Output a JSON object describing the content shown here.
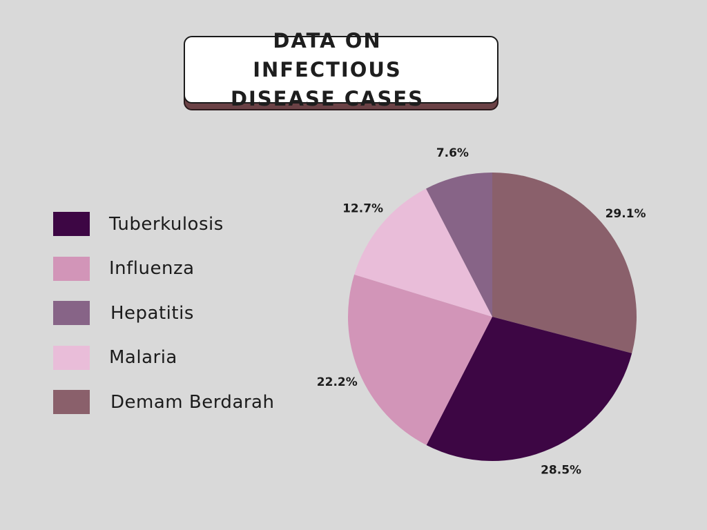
{
  "chart_data": {
    "type": "pie",
    "title": "DATA ON INFECTIOUS DISEASE CASES",
    "title_lines": [
      "DATA ON INFECTIOUS",
      "DISEASE CASES"
    ],
    "legend_position": "left",
    "slices": [
      {
        "name": "Demam Berdarah",
        "value": 29.1,
        "label": "29.1%",
        "color": "#8a606b"
      },
      {
        "name": "Tuberkulosis",
        "value": 28.5,
        "label": "28.5%",
        "color": "#3d0644"
      },
      {
        "name": "Influenza",
        "value": 22.2,
        "label": "22.2%",
        "color": "#d295b8"
      },
      {
        "name": "Malaria",
        "value": 12.7,
        "label": "12.7%",
        "color": "#e9bdd9"
      },
      {
        "name": "Hepatitis",
        "value": 7.6,
        "label": "7.6%",
        "color": "#876487"
      }
    ],
    "legend": [
      {
        "name": "Tuberkulosis",
        "color": "#3d0644"
      },
      {
        "name": "Influenza",
        "color": "#d295b8"
      },
      {
        "name": "Hepatitis",
        "color": "#876487"
      },
      {
        "name": "Malaria",
        "color": "#e9bdd9"
      },
      {
        "name": "Demam Berdarah",
        "color": "#8a606b"
      }
    ]
  },
  "colors": {
    "background": "#d9d9d9",
    "title_box": "#ffffff",
    "title_shadow": "#6b4246"
  }
}
